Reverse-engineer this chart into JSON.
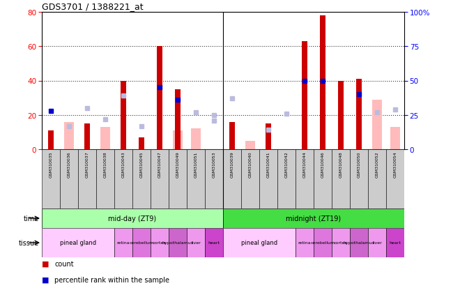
{
  "title": "GDS3701 / 1388221_at",
  "samples": [
    "GSM310035",
    "GSM310036",
    "GSM310037",
    "GSM310038",
    "GSM310043",
    "GSM310045",
    "GSM310047",
    "GSM310049",
    "GSM310051",
    "GSM310053",
    "GSM310039",
    "GSM310040",
    "GSM310041",
    "GSM310042",
    "GSM310044",
    "GSM310046",
    "GSM310048",
    "GSM310050",
    "GSM310052",
    "GSM310054"
  ],
  "count_values": [
    11,
    0,
    15,
    0,
    40,
    7,
    60,
    35,
    0,
    0,
    16,
    0,
    15,
    0,
    63,
    78,
    40,
    41,
    0,
    0
  ],
  "absent_count_values": [
    0,
    16,
    0,
    13,
    0,
    0,
    0,
    11,
    12,
    0,
    0,
    5,
    0,
    0,
    0,
    0,
    0,
    0,
    29,
    13
  ],
  "absent_rank_values": [
    0,
    17,
    0,
    22,
    0,
    0,
    0,
    0,
    0,
    25,
    0,
    0,
    14,
    26,
    0,
    0,
    0,
    0,
    27,
    0
  ],
  "percentile_present": [
    28,
    0,
    0,
    0,
    0,
    0,
    45,
    36,
    0,
    0,
    0,
    0,
    0,
    0,
    50,
    50,
    0,
    40,
    0,
    0
  ],
  "percentile_absent": [
    0,
    0,
    30,
    0,
    39,
    17,
    0,
    0,
    27,
    21,
    37,
    0,
    0,
    0,
    0,
    0,
    0,
    0,
    0,
    29
  ],
  "time_groups": [
    {
      "label": "mid-day (ZT9)",
      "start": 0,
      "end": 10,
      "color": "#aaffaa"
    },
    {
      "label": "midnight (ZT19)",
      "start": 10,
      "end": 20,
      "color": "#44dd44"
    }
  ],
  "tissue_groups": [
    {
      "label": "pineal gland",
      "start": 0,
      "end": 4,
      "color": "#ffbbff"
    },
    {
      "label": "retina",
      "start": 4,
      "end": 5,
      "color": "#ee88ee"
    },
    {
      "label": "cerebellum",
      "start": 5,
      "end": 6,
      "color": "#dd66dd"
    },
    {
      "label": "cortex",
      "start": 6,
      "end": 7,
      "color": "#ee88ee"
    },
    {
      "label": "hypothalamus",
      "start": 7,
      "end": 8,
      "color": "#cc55cc"
    },
    {
      "label": "liver",
      "start": 8,
      "end": 9,
      "color": "#ee88ee"
    },
    {
      "label": "heart",
      "start": 9,
      "end": 10,
      "color": "#cc33cc"
    },
    {
      "label": "pineal gland",
      "start": 10,
      "end": 14,
      "color": "#ffbbff"
    },
    {
      "label": "retina",
      "start": 14,
      "end": 15,
      "color": "#ee88ee"
    },
    {
      "label": "cerebellum",
      "start": 15,
      "end": 16,
      "color": "#dd66dd"
    },
    {
      "label": "cortex",
      "start": 16,
      "end": 17,
      "color": "#ee88ee"
    },
    {
      "label": "hypothalamus",
      "start": 17,
      "end": 18,
      "color": "#cc55cc"
    },
    {
      "label": "liver",
      "start": 18,
      "end": 19,
      "color": "#ee88ee"
    },
    {
      "label": "heart",
      "start": 19,
      "end": 20,
      "color": "#cc33cc"
    }
  ],
  "ylim_left": [
    0,
    80
  ],
  "ylim_right": [
    0,
    100
  ],
  "yticks_left": [
    0,
    20,
    40,
    60,
    80
  ],
  "yticks_right": [
    0,
    25,
    50,
    75,
    100
  ],
  "color_count": "#cc0000",
  "color_rank": "#0000cc",
  "color_absent_count": "#ffbbbb",
  "color_absent_rank": "#bbbbdd",
  "bg_color": "#ffffff",
  "plot_bg": "#ffffff",
  "tick_bg": "#dddddd"
}
